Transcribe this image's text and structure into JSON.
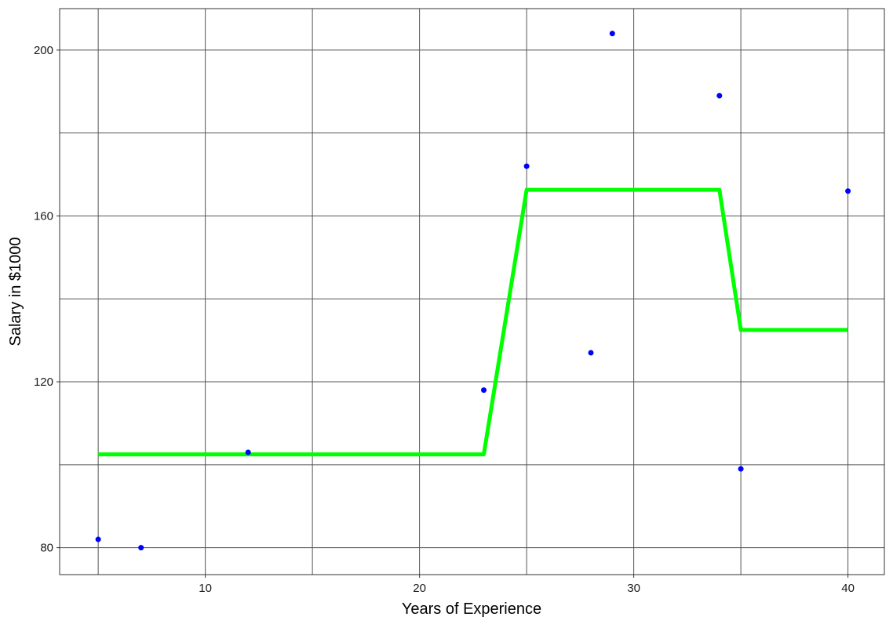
{
  "chart_data": {
    "type": "scatter",
    "title": "",
    "xlabel": "Years of Experience",
    "ylabel": "Salary in $1000",
    "xlim": [
      3.2,
      41.7
    ],
    "ylim": [
      73.5,
      210
    ],
    "x_ticks": [
      10,
      20,
      30,
      40
    ],
    "y_ticks": [
      80,
      120,
      160,
      200
    ],
    "x_minor_gridlines": [
      5,
      15,
      25,
      35
    ],
    "y_minor_gridlines": [
      100,
      140,
      180
    ],
    "grid": true,
    "series": [
      {
        "type": "scatter",
        "color": "#0000ff",
        "points": [
          {
            "x": 5,
            "y": 82
          },
          {
            "x": 7,
            "y": 80
          },
          {
            "x": 12,
            "y": 103
          },
          {
            "x": 23,
            "y": 118
          },
          {
            "x": 25,
            "y": 172
          },
          {
            "x": 28,
            "y": 127
          },
          {
            "x": 29,
            "y": 204
          },
          {
            "x": 34,
            "y": 189
          },
          {
            "x": 35,
            "y": 99
          },
          {
            "x": 40,
            "y": 166
          }
        ]
      },
      {
        "type": "line",
        "color": "#00ff00",
        "points": [
          {
            "x": 5,
            "y": 102.5
          },
          {
            "x": 23,
            "y": 102.5
          },
          {
            "x": 25,
            "y": 166.3
          },
          {
            "x": 34,
            "y": 166.3
          },
          {
            "x": 35,
            "y": 132.5
          },
          {
            "x": 40,
            "y": 132.5
          }
        ]
      }
    ]
  }
}
